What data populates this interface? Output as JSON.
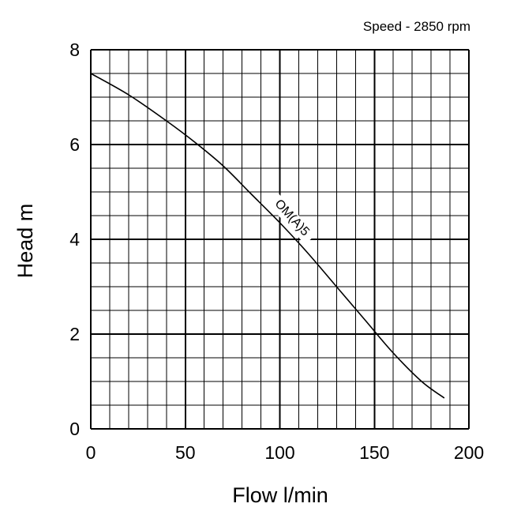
{
  "chart_data": {
    "type": "line",
    "xlabel": "Flow l/min",
    "ylabel": "Head m",
    "xlim": [
      0,
      200
    ],
    "ylim": [
      0,
      8
    ],
    "xticks": [
      0,
      50,
      100,
      150,
      200
    ],
    "yticks": [
      0,
      2,
      4,
      6,
      8
    ],
    "x_minor_step": 10,
    "y_minor_step": 0.5,
    "grid": true,
    "annotation": "Speed - 2850 rpm",
    "series": [
      {
        "name": "OM(A)5",
        "color": "#000000",
        "x": [
          0,
          20,
          40,
          55,
          70,
          85,
          100,
          115,
          130,
          145,
          160,
          175,
          187
        ],
        "y": [
          7.5,
          7.05,
          6.5,
          6.05,
          5.55,
          4.95,
          4.35,
          3.7,
          3.0,
          2.3,
          1.6,
          1.0,
          0.65
        ]
      }
    ]
  }
}
